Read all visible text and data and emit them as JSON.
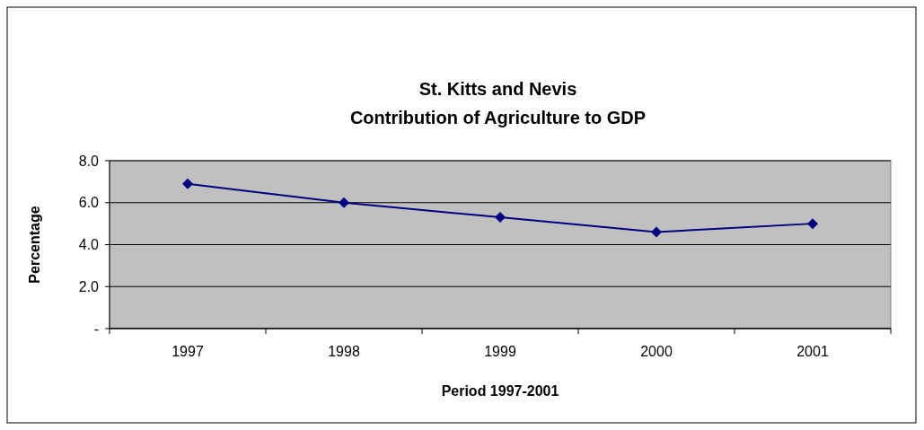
{
  "chart_data": {
    "type": "line",
    "title": "St. Kitts and Nevis",
    "subtitle": "Contribution of Agriculture to GDP",
    "xlabel": "Period 1997-2001",
    "ylabel": "Percentage",
    "categories": [
      "1997",
      "1998",
      "1999",
      "2000",
      "2001"
    ],
    "series": [
      {
        "color": "#000080",
        "values": [
          6.9,
          6.0,
          5.3,
          4.6,
          5.0
        ]
      }
    ],
    "ylim": [
      0,
      8
    ],
    "yticks": [
      {
        "value": 0,
        "label": "-"
      },
      {
        "value": 2,
        "label": "2.0"
      },
      {
        "value": 4,
        "label": "4.0"
      },
      {
        "value": 6,
        "label": "6.0"
      },
      {
        "value": 8,
        "label": "8.0"
      }
    ],
    "grid": "y",
    "marker": "diamond",
    "line_style": "solid"
  }
}
